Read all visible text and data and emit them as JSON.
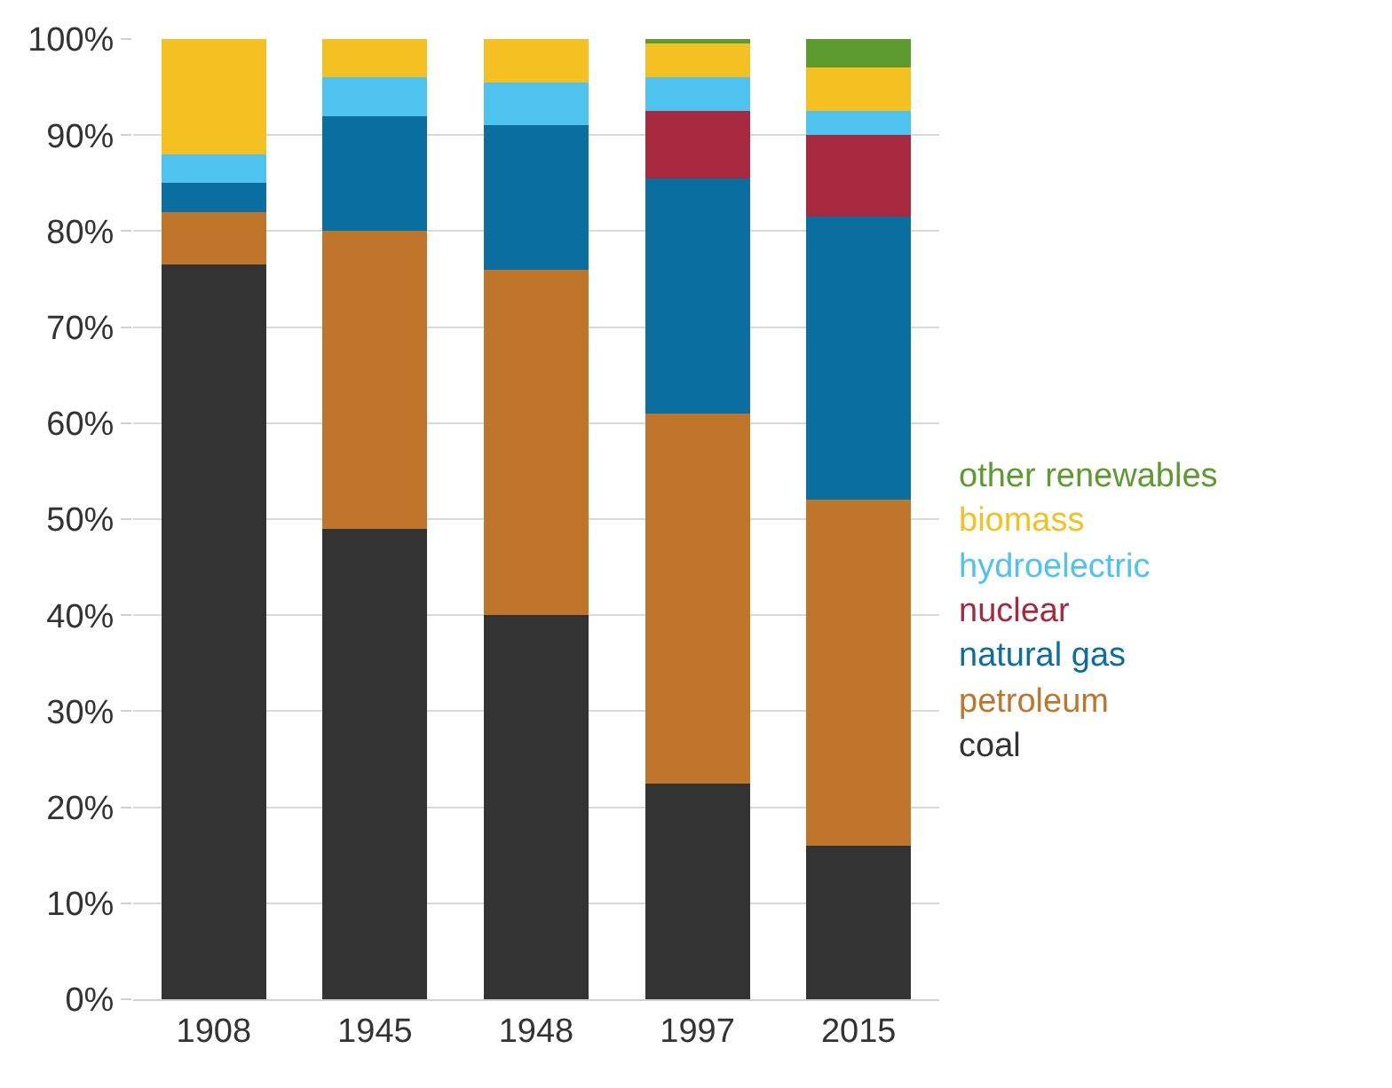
{
  "chart_data": {
    "type": "bar",
    "stacked": true,
    "categories": [
      "1908",
      "1945",
      "1948",
      "1997",
      "2015"
    ],
    "series": [
      {
        "name": "coal",
        "color": "#333333",
        "values": [
          76.5,
          49,
          40,
          22.5,
          16
        ]
      },
      {
        "name": "petroleum",
        "color": "#c0762a",
        "values": [
          5.5,
          31,
          36,
          38.5,
          36
        ]
      },
      {
        "name": "natural gas",
        "color": "#0a6fa0",
        "values": [
          3,
          12,
          15,
          24.5,
          29.5
        ]
      },
      {
        "name": "nuclear",
        "color": "#a8293d",
        "values": [
          null,
          null,
          null,
          7,
          8.5
        ]
      },
      {
        "name": "hydroelectric",
        "color": "#4fc3f0",
        "values": [
          3,
          4,
          4.5,
          3.5,
          2.5
        ]
      },
      {
        "name": "biomass",
        "color": "#f5c022",
        "values": [
          12,
          4,
          4.5,
          3.5,
          4.5
        ]
      },
      {
        "name": "other renewables",
        "color": "#5d9b2e",
        "values": [
          null,
          null,
          null,
          0.5,
          3
        ]
      }
    ],
    "ylim": [
      0,
      100
    ],
    "yticks": [
      {
        "value": 0,
        "label": "0%"
      },
      {
        "value": 10,
        "label": "10%"
      },
      {
        "value": 20,
        "label": "20%"
      },
      {
        "value": 30,
        "label": "30%"
      },
      {
        "value": 40,
        "label": "40%"
      },
      {
        "value": 50,
        "label": "50%"
      },
      {
        "value": 60,
        "label": "60%"
      },
      {
        "value": 70,
        "label": "70%"
      },
      {
        "value": 80,
        "label": "80%"
      },
      {
        "value": 90,
        "label": "90%"
      },
      {
        "value": 100,
        "label": "100%"
      }
    ],
    "grid": "y",
    "legend": "right"
  }
}
